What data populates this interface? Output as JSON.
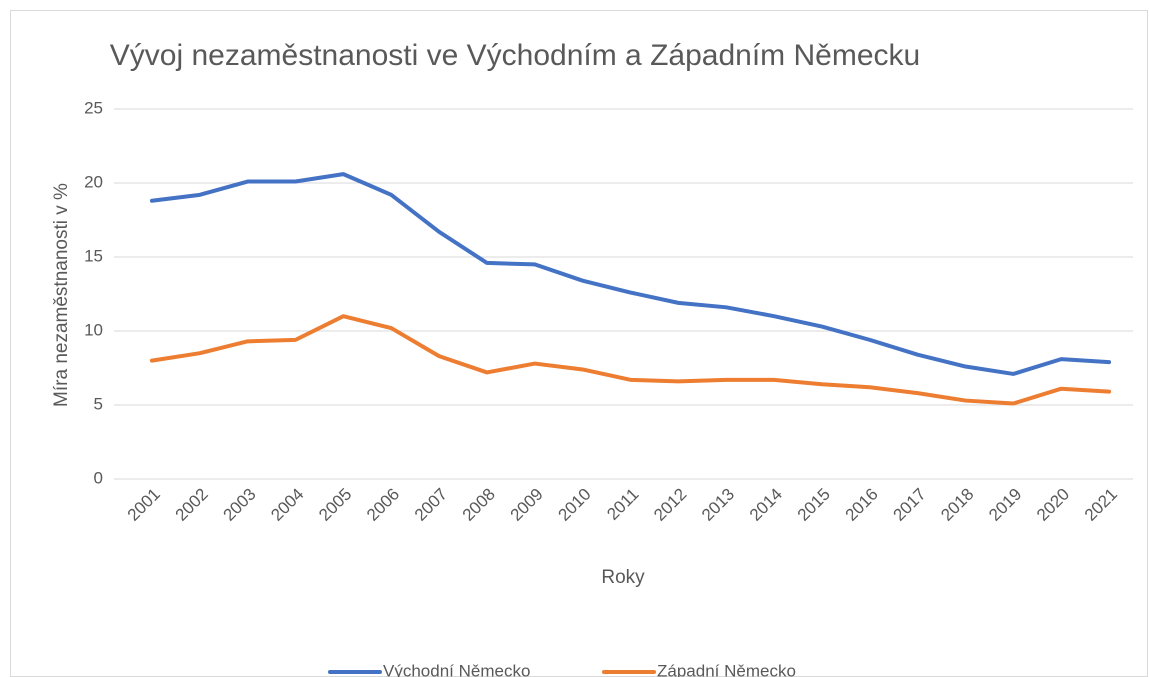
{
  "chart_data": {
    "type": "line",
    "title": "Vývoj nezaměstnanosti ve Východním a Západním Německu",
    "x_label": "Roky",
    "y_label": "Míra nezaměstnanosti v %",
    "categories": [
      "2001",
      "2002",
      "2003",
      "2004",
      "2005",
      "2006",
      "2007",
      "2008",
      "2009",
      "2010",
      "2011",
      "2012",
      "2013",
      "2014",
      "2015",
      "2016",
      "2017",
      "2018",
      "2019",
      "2020",
      "2021"
    ],
    "series": [
      {
        "name": "Východní Německo",
        "color": "#4472c4",
        "values": [
          18.8,
          19.2,
          20.1,
          20.1,
          20.6,
          19.2,
          16.7,
          14.6,
          14.5,
          13.4,
          12.6,
          11.9,
          11.6,
          11.0,
          10.3,
          9.4,
          8.4,
          7.6,
          7.1,
          8.1,
          7.9
        ]
      },
      {
        "name": "Západní Německo",
        "color": "#ed7d31",
        "values": [
          8.0,
          8.5,
          9.3,
          9.4,
          11.0,
          10.2,
          8.3,
          7.2,
          7.8,
          7.4,
          6.7,
          6.6,
          6.7,
          6.7,
          6.4,
          6.2,
          5.8,
          5.3,
          5.1,
          6.1,
          5.9
        ]
      }
    ],
    "ylim": [
      0,
      25
    ],
    "yticks": [
      0,
      5,
      10,
      15,
      20,
      25
    ],
    "grid": true,
    "legend": "bottom"
  }
}
